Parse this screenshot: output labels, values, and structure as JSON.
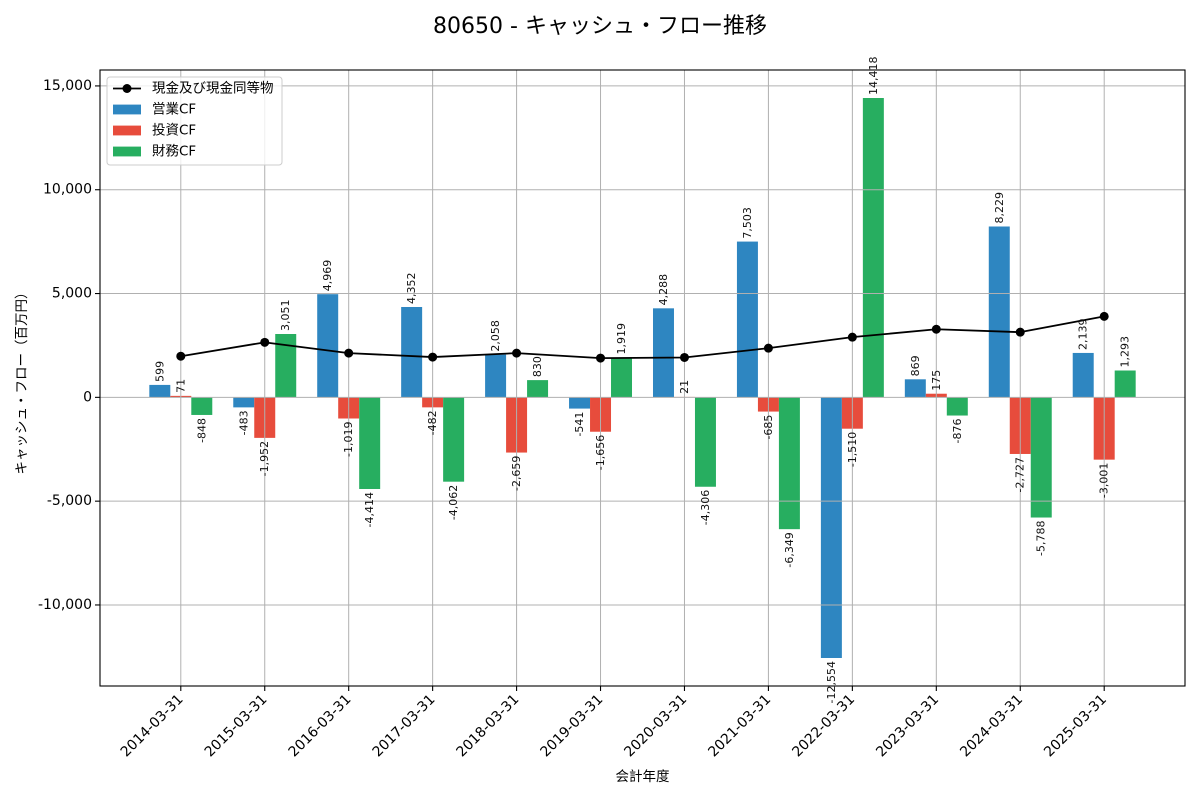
{
  "chart_data": {
    "type": "bar",
    "title": "80650 - キャッシュ・フロー推移",
    "xlabel": "会計年度",
    "ylabel": "キャッシュ・フロー（百万円）",
    "categories": [
      "2014-03-31",
      "2015-03-31",
      "2016-03-31",
      "2017-03-31",
      "2018-03-31",
      "2019-03-31",
      "2020-03-31",
      "2021-03-31",
      "2022-03-31",
      "2023-03-31",
      "2024-03-31",
      "2025-03-31"
    ],
    "series": [
      {
        "name": "現金及び現金同等物",
        "type": "line",
        "color": "#000000",
        "values": [
          1980,
          2650,
          2130,
          1940,
          2130,
          1890,
          1920,
          2370,
          2900,
          3280,
          3140,
          3900
        ]
      },
      {
        "name": "営業CF",
        "type": "bar",
        "color": "#2e86c1",
        "values": [
          599,
          -483,
          4969,
          4352,
          2058,
          -541,
          4288,
          7503,
          -12554,
          869,
          8229,
          2139
        ]
      },
      {
        "name": "投資CF",
        "type": "bar",
        "color": "#e74c3c",
        "values": [
          71,
          -1952,
          -1019,
          -482,
          -2659,
          -1656,
          21,
          -685,
          -1510,
          175,
          -2727,
          -3001
        ]
      },
      {
        "name": "財務CF",
        "type": "bar",
        "color": "#27ae60",
        "values": [
          -848,
          3051,
          -4414,
          -4062,
          830,
          1919,
          -4306,
          -6349,
          14418,
          -876,
          -5788,
          1293
        ]
      }
    ],
    "ylim": [
      -13903,
      15767
    ],
    "yticks": [
      -10000,
      -5000,
      0,
      5000,
      10000,
      15000
    ],
    "grid": true,
    "legend_position": "top-left",
    "data_labels": true
  }
}
